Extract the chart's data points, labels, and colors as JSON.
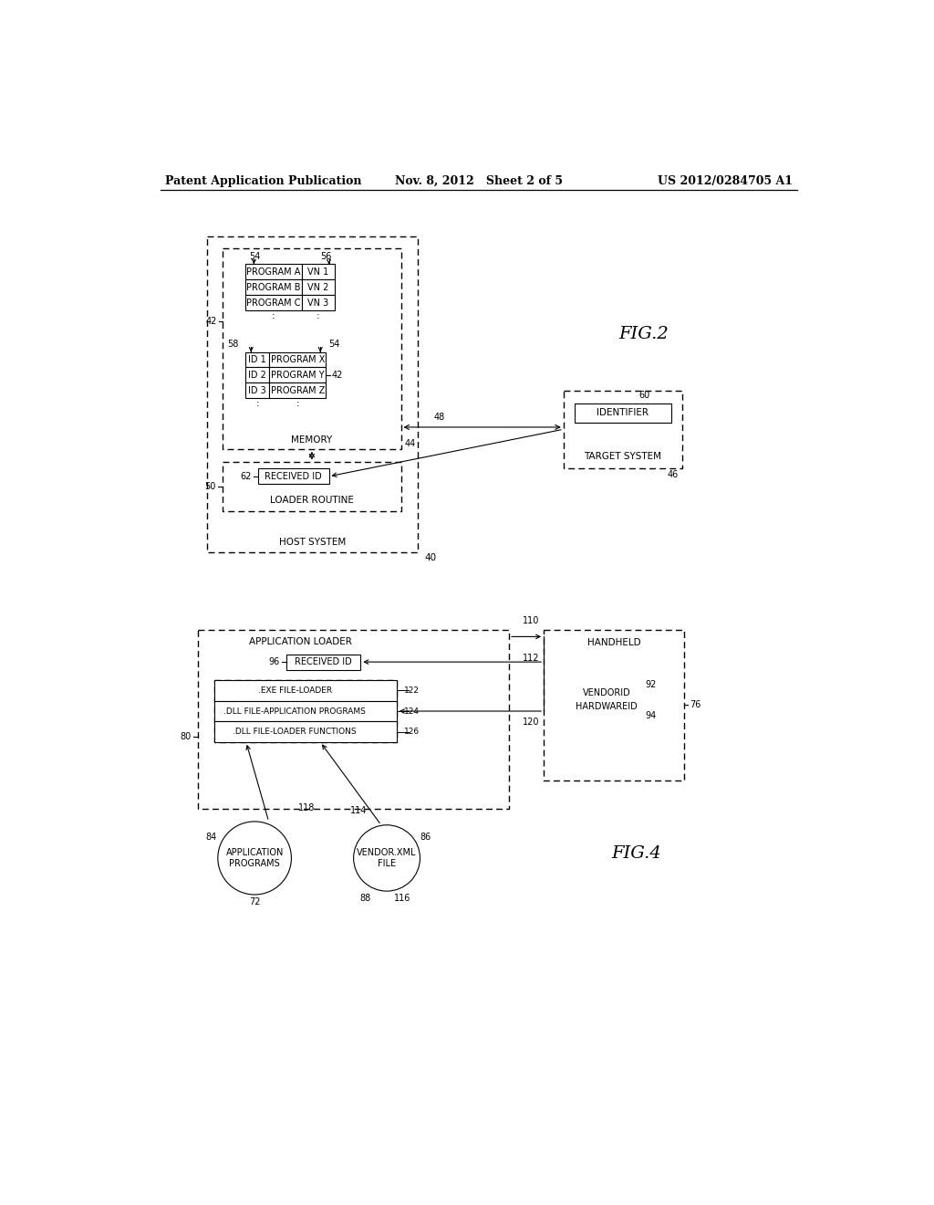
{
  "bg_color": "#ffffff",
  "header_left": "Patent Application Publication",
  "header_mid": "Nov. 8, 2012   Sheet 2 of 5",
  "header_right": "US 2012/0284705 A1"
}
